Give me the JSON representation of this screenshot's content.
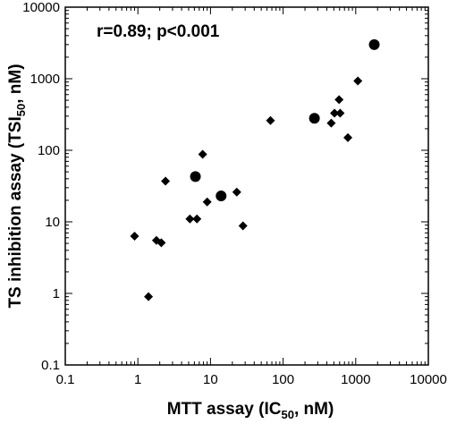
{
  "chart_data": {
    "type": "scatter",
    "annotation": "r=0.89; p<0.001",
    "xlabel": {
      "main": "MTT assay (IC",
      "sub": "50",
      "tail": ", nM)"
    },
    "ylabel": {
      "main": "TS inhibition assay (TSI",
      "sub": "50",
      "tail": ", nM)"
    },
    "x_scale": "log",
    "y_scale": "log",
    "xlim": [
      0.1,
      10000
    ],
    "ylim": [
      0.1,
      10000
    ],
    "x_ticks": [
      0.1,
      1,
      10,
      100,
      1000,
      10000
    ],
    "x_tick_labels": [
      "0.1",
      "1",
      "10",
      "100",
      "1000",
      "10000"
    ],
    "y_ticks": [
      0.1,
      1,
      10,
      100,
      1000,
      10000
    ],
    "y_tick_labels": [
      "0.1",
      "1",
      "10",
      "100",
      "1000",
      "10000"
    ],
    "grid": false,
    "series": [
      {
        "marker": "diamond",
        "points": [
          {
            "x": 0.9,
            "y": 6.3
          },
          {
            "x": 1.4,
            "y": 0.9
          },
          {
            "x": 1.8,
            "y": 5.5
          },
          {
            "x": 2.1,
            "y": 5.1
          },
          {
            "x": 2.4,
            "y": 37
          },
          {
            "x": 5.2,
            "y": 11
          },
          {
            "x": 6.5,
            "y": 11
          },
          {
            "x": 7.8,
            "y": 88
          },
          {
            "x": 9.0,
            "y": 19
          },
          {
            "x": 23,
            "y": 26
          },
          {
            "x": 28,
            "y": 8.8
          },
          {
            "x": 67,
            "y": 260
          },
          {
            "x": 460,
            "y": 240
          },
          {
            "x": 510,
            "y": 330
          },
          {
            "x": 590,
            "y": 510
          },
          {
            "x": 610,
            "y": 330
          },
          {
            "x": 780,
            "y": 150
          },
          {
            "x": 1070,
            "y": 930
          }
        ]
      },
      {
        "marker": "circle",
        "points": [
          {
            "x": 6.2,
            "y": 43
          },
          {
            "x": 14,
            "y": 23
          },
          {
            "x": 270,
            "y": 280
          },
          {
            "x": 1800,
            "y": 3000
          }
        ]
      }
    ]
  }
}
